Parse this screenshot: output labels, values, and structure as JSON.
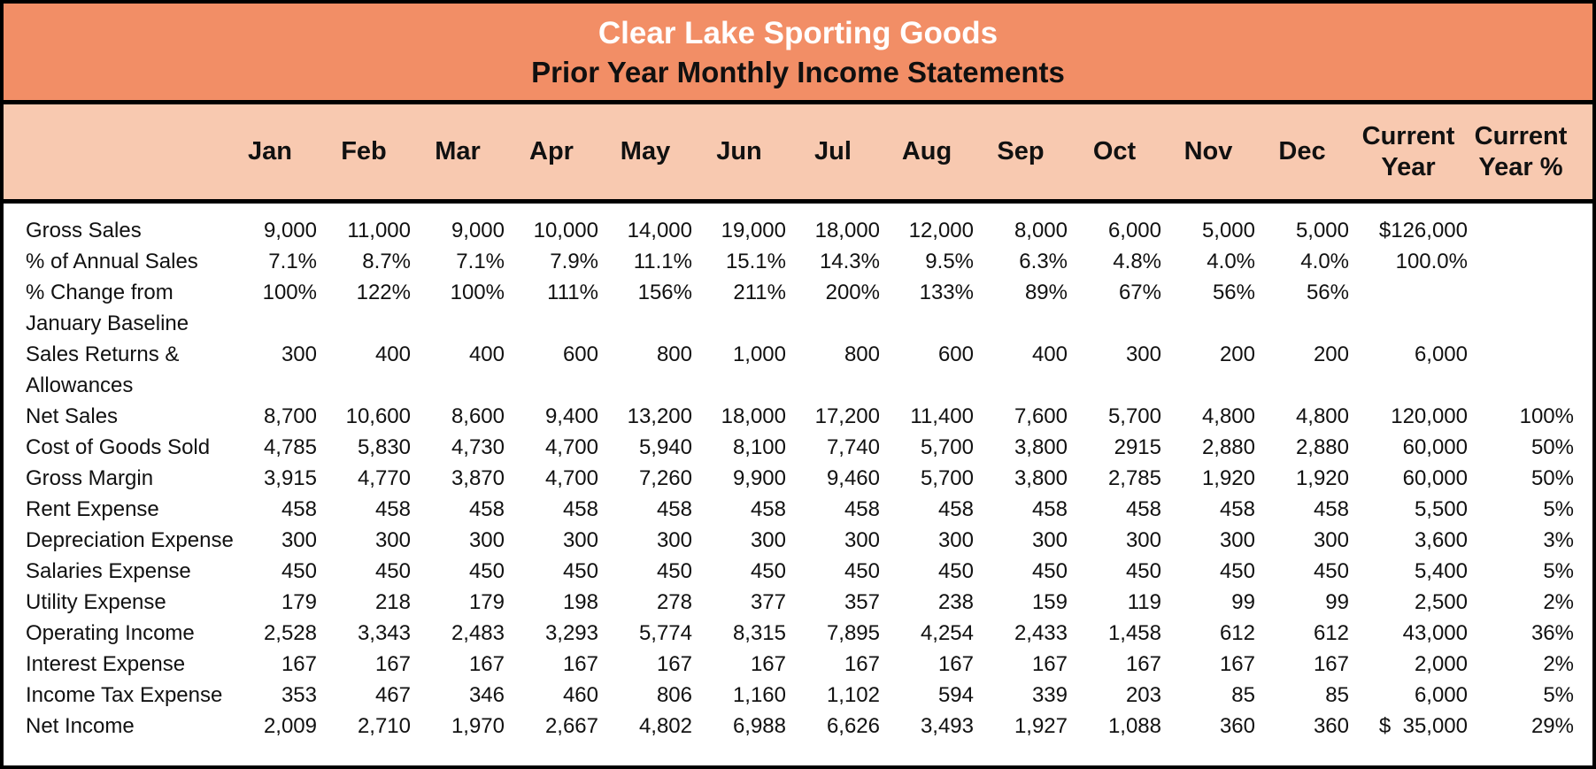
{
  "colors": {
    "title_band_bg": "#F28E66",
    "header_band_bg": "#F8C9B0",
    "border": "#000000",
    "title_text": "#FFFFFF",
    "subtitle_text": "#101010"
  },
  "chart_data": {
    "type": "table",
    "title": "Clear Lake Sporting Goods",
    "subtitle": "Prior Year Monthly Income Statements",
    "columns": [
      "Jan",
      "Feb",
      "Mar",
      "Apr",
      "May",
      "Jun",
      "Jul",
      "Aug",
      "Sep",
      "Oct",
      "Nov",
      "Dec",
      "Current Year",
      "Current Year %"
    ],
    "rows": [
      {
        "label": "Gross Sales",
        "values": [
          "9,000",
          "11,000",
          "9,000",
          "10,000",
          "14,000",
          "19,000",
          "18,000",
          "12,000",
          "8,000",
          "6,000",
          "5,000",
          "5,000",
          "$126,000",
          ""
        ]
      },
      {
        "label": "% of Annual Sales",
        "values": [
          "7.1%",
          "8.7%",
          "7.1%",
          "7.9%",
          "11.1%",
          "15.1%",
          "14.3%",
          "9.5%",
          "6.3%",
          "4.8%",
          "4.0%",
          "4.0%",
          "100.0%",
          ""
        ]
      },
      {
        "label": "% Change from",
        "label2": "January Baseline",
        "values": [
          "100%",
          "122%",
          "100%",
          "111%",
          "156%",
          "211%",
          "200%",
          "133%",
          "89%",
          "67%",
          "56%",
          "56%",
          "",
          ""
        ]
      },
      {
        "label": "Sales Returns &",
        "label2": "Allowances",
        "values": [
          "300",
          "400",
          "400",
          "600",
          "800",
          "1,000",
          "800",
          "600",
          "400",
          "300",
          "200",
          "200",
          "6,000",
          ""
        ]
      },
      {
        "label": "Net Sales",
        "values": [
          "8,700",
          "10,600",
          "8,600",
          "9,400",
          "13,200",
          "18,000",
          "17,200",
          "11,400",
          "7,600",
          "5,700",
          "4,800",
          "4,800",
          "120,000",
          "100%"
        ]
      },
      {
        "label": "Cost of Goods Sold",
        "values": [
          "4,785",
          "5,830",
          "4,730",
          "4,700",
          "5,940",
          "8,100",
          "7,740",
          "5,700",
          "3,800",
          "2915",
          "2,880",
          "2,880",
          "60,000",
          "50%"
        ]
      },
      {
        "label": "Gross Margin",
        "values": [
          "3,915",
          "4,770",
          "3,870",
          "4,700",
          "7,260",
          "9,900",
          "9,460",
          "5,700",
          "3,800",
          "2,785",
          "1,920",
          "1,920",
          "60,000",
          "50%"
        ]
      },
      {
        "label": "Rent Expense",
        "values": [
          "458",
          "458",
          "458",
          "458",
          "458",
          "458",
          "458",
          "458",
          "458",
          "458",
          "458",
          "458",
          "5,500",
          "5%"
        ]
      },
      {
        "label": "Depreciation Expense",
        "values": [
          "300",
          "300",
          "300",
          "300",
          "300",
          "300",
          "300",
          "300",
          "300",
          "300",
          "300",
          "300",
          "3,600",
          "3%"
        ]
      },
      {
        "label": "Salaries Expense",
        "values": [
          "450",
          "450",
          "450",
          "450",
          "450",
          "450",
          "450",
          "450",
          "450",
          "450",
          "450",
          "450",
          "5,400",
          "5%"
        ]
      },
      {
        "label": "Utility Expense",
        "values": [
          "179",
          "218",
          "179",
          "198",
          "278",
          "377",
          "357",
          "238",
          "159",
          "119",
          "99",
          "99",
          "2,500",
          "2%"
        ]
      },
      {
        "label": "Operating Income",
        "values": [
          "2,528",
          "3,343",
          "2,483",
          "3,293",
          "5,774",
          "8,315",
          "7,895",
          "4,254",
          "2,433",
          "1,458",
          "612",
          "612",
          "43,000",
          "36%"
        ]
      },
      {
        "label": "Interest Expense",
        "values": [
          "167",
          "167",
          "167",
          "167",
          "167",
          "167",
          "167",
          "167",
          "167",
          "167",
          "167",
          "167",
          "2,000",
          "2%"
        ]
      },
      {
        "label": "Income Tax Expense",
        "values": [
          "353",
          "467",
          "346",
          "460",
          "806",
          "1,160",
          "1,102",
          "594",
          "339",
          "203",
          "85",
          "85",
          "6,000",
          "5%"
        ]
      },
      {
        "label": "Net Income",
        "values": [
          "2,009",
          "2,710",
          "1,970",
          "2,667",
          "4,802",
          "6,988",
          "6,626",
          "3,493",
          "1,927",
          "1,088",
          "360",
          "360",
          "$  35,000",
          "29%"
        ]
      }
    ]
  }
}
